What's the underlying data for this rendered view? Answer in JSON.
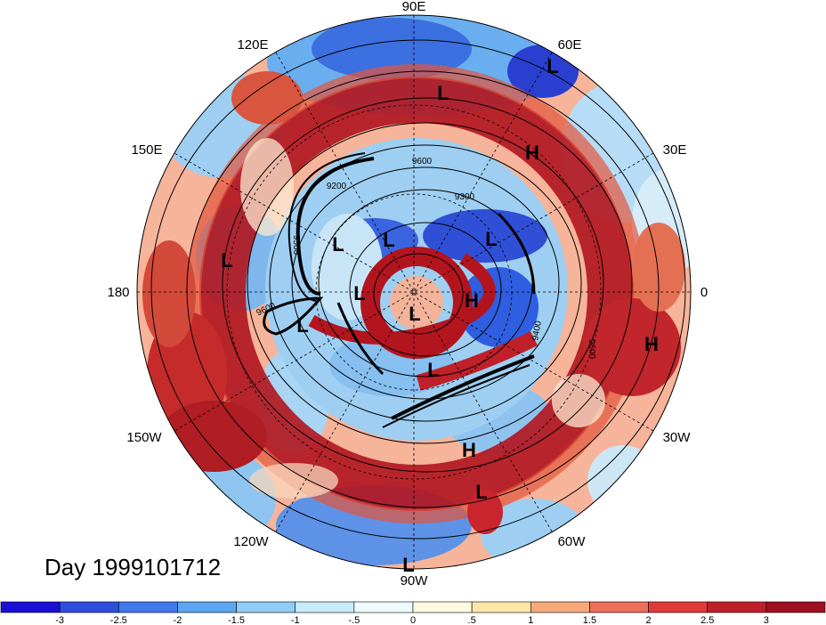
{
  "map": {
    "projection": "polar stereographic, north pole",
    "longitude_labels": [
      "90E",
      "60E",
      "30E",
      "0",
      "30W",
      "60W",
      "90W",
      "120W",
      "150W",
      "180",
      "150E",
      "120E"
    ],
    "contour_labels": [
      "9300",
      "9200",
      "9600",
      "9500",
      "9600",
      "9400",
      "9600"
    ],
    "pressure_systems": [
      "L",
      "L",
      "H",
      "L",
      "L",
      "L",
      "L",
      "L",
      "H",
      "L",
      "L",
      "H",
      "H",
      "L",
      "L",
      "L"
    ],
    "colors": {
      "strong_positive": "#a50f15",
      "positive": "#e34a33",
      "weak_positive": "#fcae91",
      "neutral": "#fffbe6",
      "weak_negative": "#9ecae1",
      "negative": "#4292c6",
      "strong_negative": "#1c1cc8"
    }
  },
  "day_label": "Day 1999101712",
  "colorbar": {
    "labels": [
      "-3",
      "-2.5",
      "-2",
      "-1.5",
      "-1",
      "-.5",
      "0",
      ".5",
      "1",
      "1.5",
      "2",
      "2.5",
      "3"
    ],
    "colors": [
      "#1a0fd4",
      "#2d4fe0",
      "#3f78ea",
      "#5ca6f2",
      "#8fcdf7",
      "#c6ebfb",
      "#eefbff",
      "#fffbe0",
      "#fde7a8",
      "#f6a97a",
      "#ee6f57",
      "#e03a3a",
      "#bf1f2a",
      "#9e0f1f"
    ]
  }
}
